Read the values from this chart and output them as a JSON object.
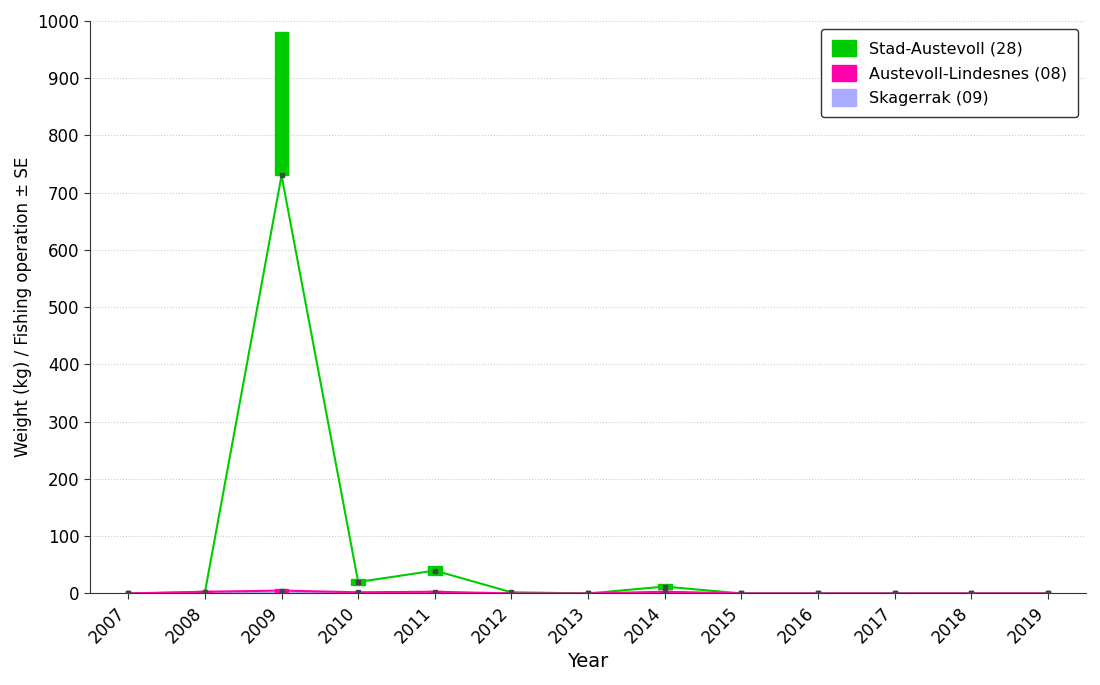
{
  "years": [
    2007,
    2008,
    2009,
    2010,
    2011,
    2012,
    2013,
    2014,
    2015,
    2016,
    2017,
    2018,
    2019
  ],
  "stad_austevoll": {
    "mean": [
      0,
      2,
      730,
      20,
      40,
      2,
      0,
      12,
      0,
      0,
      0,
      0,
      0
    ],
    "se_upper": [
      0,
      3,
      980,
      25,
      48,
      3,
      0,
      16,
      0,
      0,
      0,
      0,
      0
    ],
    "se_lower": [
      0,
      1,
      730,
      15,
      32,
      1,
      0,
      8,
      0,
      0,
      0,
      0,
      0
    ],
    "color": "#00cc00",
    "label": "Stad-Austevoll (28)"
  },
  "austevoll_lindesnes": {
    "mean": [
      0,
      3,
      5,
      2,
      3,
      0,
      0,
      3,
      0,
      0,
      0,
      0,
      0
    ],
    "se_upper": [
      0,
      5,
      8,
      3,
      5,
      0,
      0,
      5,
      0,
      0,
      0,
      0,
      0
    ],
    "se_lower": [
      0,
      1,
      2,
      1,
      1,
      0,
      0,
      1,
      0,
      0,
      0,
      0,
      0
    ],
    "color": "#ff00aa",
    "label": "Austevoll-Lindesnes (08)"
  },
  "skagerrak": {
    "mean": [
      0,
      0,
      0,
      0,
      0,
      0,
      0,
      0,
      0,
      0,
      0,
      0,
      0
    ],
    "se_upper": [
      0,
      0,
      0,
      0,
      0,
      0,
      0,
      0,
      0,
      0,
      0,
      0,
      0
    ],
    "se_lower": [
      0,
      0,
      0,
      0,
      0,
      0,
      0,
      0,
      0,
      0,
      0,
      0,
      0
    ],
    "color": "#aaaaff",
    "label": "Skagerrak (09)"
  },
  "xlim": [
    2006.5,
    2019.5
  ],
  "ylim": [
    0,
    1000
  ],
  "yticks": [
    0,
    100,
    200,
    300,
    400,
    500,
    600,
    700,
    800,
    900,
    1000
  ],
  "xticks": [
    2007,
    2008,
    2009,
    2010,
    2011,
    2012,
    2013,
    2014,
    2015,
    2016,
    2017,
    2018,
    2019
  ],
  "xlabel": "Year",
  "ylabel": "Weight (kg) / Fishing operation ± SE",
  "grid_color": "#cccccc",
  "background_color": "#ffffff",
  "bar_width": 0.18
}
